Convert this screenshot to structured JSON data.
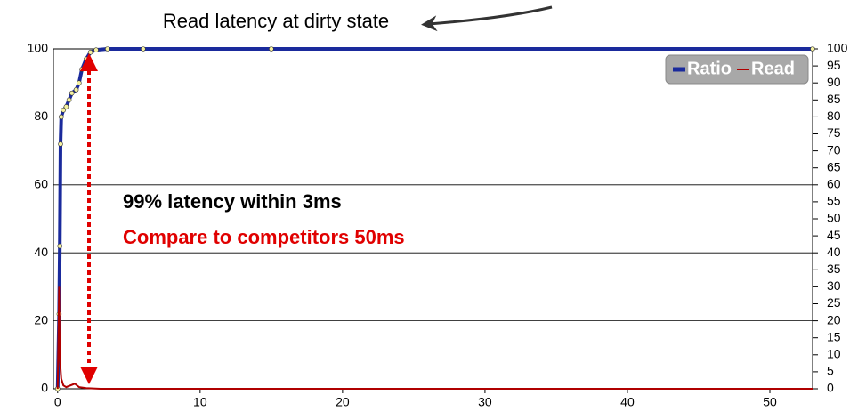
{
  "chart_data": {
    "type": "line",
    "title": "Read latency at dirty state",
    "annotations": [
      "99% latency within 3ms",
      "Compare to competitors 50ms"
    ],
    "xlim": [
      -0.3,
      53
    ],
    "xticks": [
      0,
      10,
      20,
      30,
      40,
      50
    ],
    "ylim": [
      0,
      100
    ],
    "yticks": [
      0,
      20,
      40,
      60,
      80,
      100
    ],
    "y2lim": [
      0,
      100
    ],
    "y2ticks": [
      0,
      5,
      10,
      15,
      20,
      25,
      30,
      35,
      40,
      45,
      50,
      55,
      60,
      65,
      70,
      75,
      80,
      85,
      90,
      95,
      100
    ],
    "grid": true,
    "legend": "upper right",
    "series": [
      {
        "name": "Ratio",
        "color": "#1a2a9c",
        "x": [
          0,
          0.1,
          0.15,
          0.2,
          0.25,
          0.4,
          0.6,
          0.8,
          1.0,
          1.3,
          1.5,
          1.7,
          2.0,
          2.3,
          2.7,
          3.5,
          6,
          15,
          53
        ],
        "values": [
          0,
          22,
          42,
          72,
          80,
          82,
          83,
          85,
          87,
          88,
          90,
          94,
          97,
          99,
          99.7,
          100,
          100,
          100,
          100
        ]
      },
      {
        "name": "Read",
        "color": "#b00000",
        "axis": "y2",
        "x": [
          0,
          0.1,
          0.15,
          0.25,
          0.4,
          0.6,
          1.2,
          1.5,
          2,
          3,
          53
        ],
        "values": [
          0,
          30,
          9,
          3,
          1,
          0.5,
          1.5,
          0.5,
          0.2,
          0,
          0
        ]
      }
    ]
  }
}
